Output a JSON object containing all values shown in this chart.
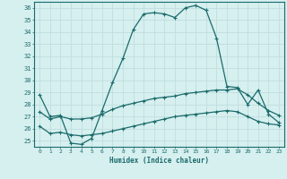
{
  "xlabel": "Humidex (Indice chaleur)",
  "bg_color": "#d6efef",
  "grid_color": "#c0dede",
  "line_color": "#1a6b6b",
  "xlim": [
    -0.5,
    23.5
  ],
  "ylim": [
    24.5,
    36.5
  ],
  "xticks": [
    0,
    1,
    2,
    3,
    4,
    5,
    6,
    7,
    8,
    9,
    10,
    11,
    12,
    13,
    14,
    15,
    16,
    17,
    18,
    19,
    20,
    21,
    22,
    23
  ],
  "yticks": [
    25,
    26,
    27,
    28,
    29,
    30,
    31,
    32,
    33,
    34,
    35,
    36
  ],
  "line1_x": [
    0,
    1,
    2,
    3,
    4,
    5,
    6,
    7,
    8,
    9,
    10,
    11,
    12,
    13,
    14,
    15,
    16,
    17,
    18,
    19,
    20,
    21,
    22,
    23
  ],
  "line1_y": [
    28.8,
    27.0,
    27.1,
    24.8,
    24.7,
    25.2,
    27.5,
    29.8,
    31.8,
    34.2,
    35.5,
    35.6,
    35.5,
    35.2,
    36.0,
    36.2,
    35.8,
    33.5,
    29.5,
    29.4,
    28.0,
    29.2,
    27.2,
    26.5
  ],
  "line2_x": [
    0,
    1,
    2,
    3,
    4,
    5,
    6,
    7,
    8,
    9,
    10,
    11,
    12,
    13,
    14,
    15,
    16,
    17,
    18,
    19,
    20,
    21,
    22,
    23
  ],
  "line2_y": [
    27.4,
    26.8,
    27.0,
    26.8,
    26.8,
    26.9,
    27.2,
    27.6,
    27.9,
    28.1,
    28.3,
    28.5,
    28.6,
    28.7,
    28.9,
    29.0,
    29.1,
    29.2,
    29.2,
    29.3,
    28.8,
    28.1,
    27.5,
    27.1
  ],
  "line3_x": [
    0,
    1,
    2,
    3,
    4,
    5,
    6,
    7,
    8,
    9,
    10,
    11,
    12,
    13,
    14,
    15,
    16,
    17,
    18,
    19,
    20,
    21,
    22,
    23
  ],
  "line3_y": [
    26.2,
    25.6,
    25.7,
    25.5,
    25.4,
    25.5,
    25.6,
    25.8,
    26.0,
    26.2,
    26.4,
    26.6,
    26.8,
    27.0,
    27.1,
    27.2,
    27.3,
    27.4,
    27.5,
    27.4,
    27.0,
    26.6,
    26.4,
    26.3
  ]
}
